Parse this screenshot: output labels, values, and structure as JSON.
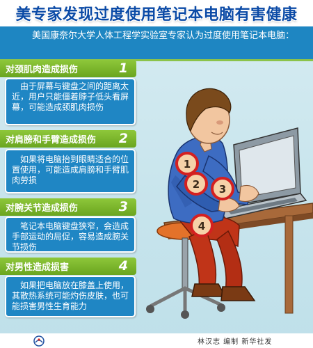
{
  "title": "美专家发现过度使用笔记本电脑有害健康",
  "intro": "美国康奈尔大学人体工程学实验室专家认为过度使用笔记本电脑：",
  "sections": [
    {
      "label": "对颈肌肉造成损伤",
      "number": "1",
      "text": "由于屏幕与键盘之间的距离太近，用户只能僵着脖子低头看屏幕，可能造成颈肌肉损伤"
    },
    {
      "label": "对肩膀和手臂造成损伤",
      "number": "2",
      "text": "如果将电脑抬到眼睛适合的位置使用，可能造成肩膀和手臂肌肉劳损"
    },
    {
      "label": "对腕关节造成损伤",
      "number": "3",
      "text": "笔记本电脑键盘狭窄，会造成手部运动的局促，容易造成腕关节损伤"
    },
    {
      "label": "对男性造成损害",
      "number": "4",
      "text": "如果把电脑放在膝盖上使用，其散热系统可能灼伤皮肤，也可能损害男性生育能力"
    }
  ],
  "badges": [
    "1",
    "2",
    "3",
    "4"
  ],
  "footer": {
    "credit": "林汉志 编制 新华社发"
  },
  "colors": {
    "title": "#0b4aa6",
    "panel": "#1f86c4",
    "band": "#7cb82f",
    "badge_ring": "#d42020",
    "table": "#a8693a"
  }
}
